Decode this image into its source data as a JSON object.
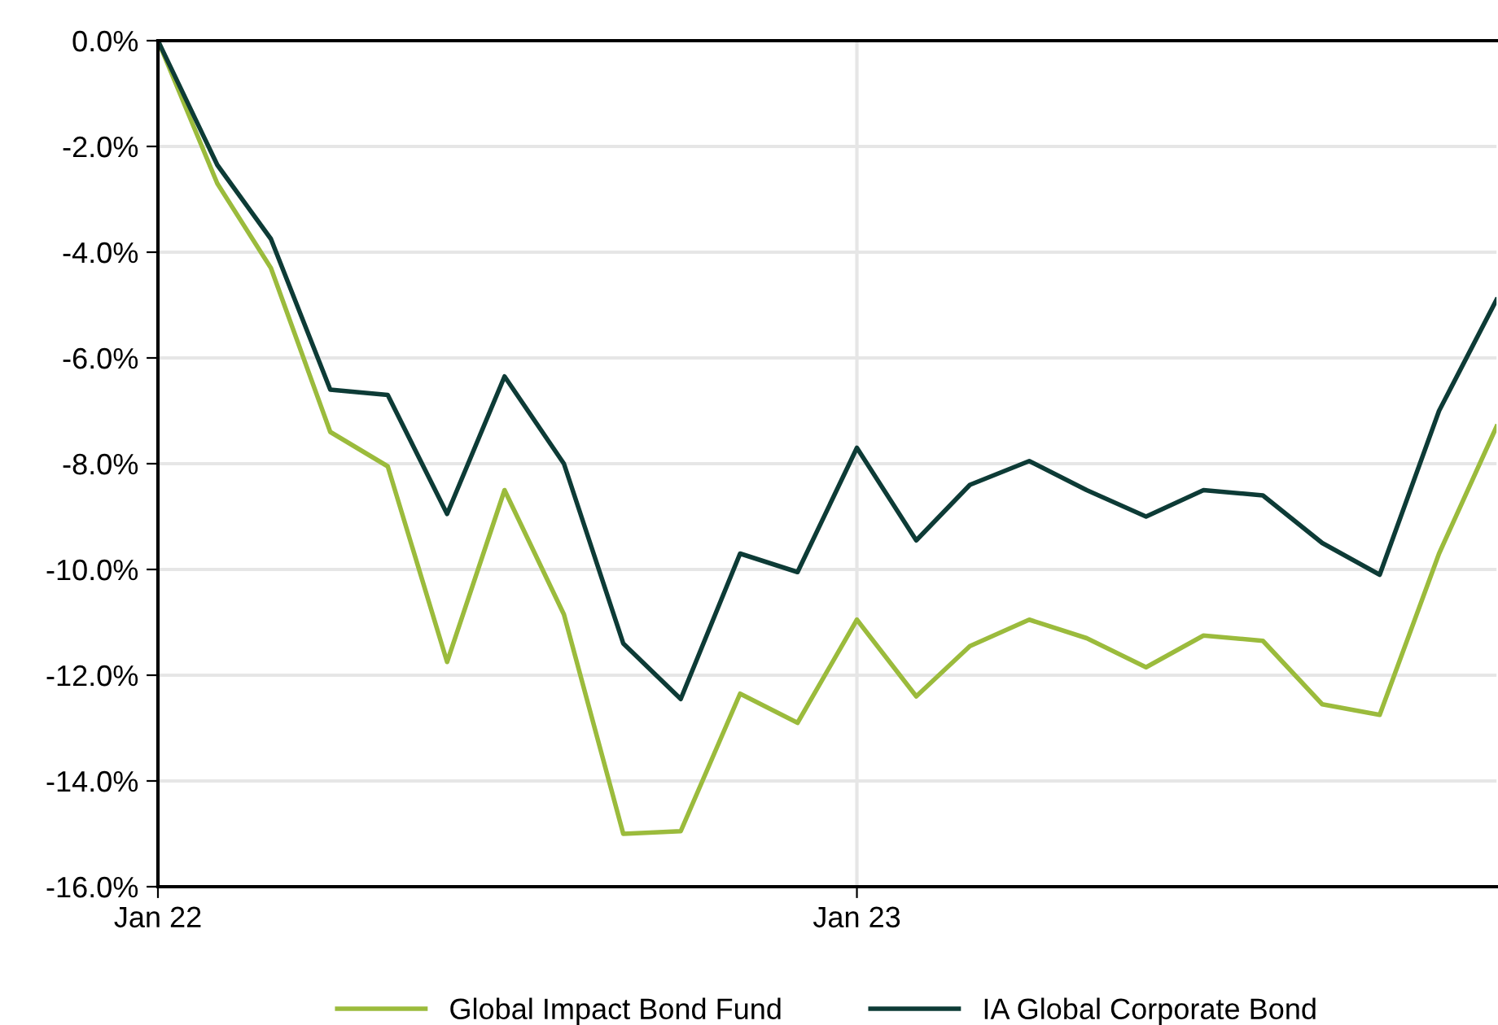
{
  "chart_data": {
    "type": "line",
    "x": [
      "2022-01",
      "2022-02",
      "2022-03",
      "2022-04",
      "2022-05",
      "2022-06",
      "2022-07",
      "2022-08",
      "2022-09",
      "2022-10",
      "2022-11",
      "2022-12",
      "2023-01",
      "2023-02",
      "2023-03",
      "2023-04",
      "2023-05",
      "2023-06",
      "2023-07",
      "2023-08",
      "2023-09",
      "2023-10",
      "2023-11",
      "2023-12"
    ],
    "series": [
      {
        "name": "Global Impact Bond Fund",
        "color": "#9bbb3c",
        "values": [
          0,
          -2.7,
          -4.3,
          -7.4,
          -8.05,
          -11.75,
          -8.5,
          -10.85,
          -15.0,
          -14.95,
          -12.35,
          -12.9,
          -10.95,
          -12.4,
          -11.45,
          -10.95,
          -11.3,
          -11.85,
          -11.25,
          -11.35,
          -12.55,
          -12.75,
          -9.7,
          -7.3
        ]
      },
      {
        "name": "IA Global Corporate Bond",
        "color": "#0d3b36",
        "values": [
          0,
          -2.35,
          -3.75,
          -6.6,
          -6.7,
          -8.95,
          -6.35,
          -8.0,
          -11.4,
          -12.45,
          -9.7,
          -10.05,
          -7.7,
          -9.45,
          -8.4,
          -7.95,
          -8.5,
          -9.0,
          -8.5,
          -8.6,
          -9.5,
          -10.1,
          -7.0,
          -4.9
        ]
      }
    ],
    "xlim": [
      "2022-01",
      "2023-12"
    ],
    "xticks": [
      {
        "value": "2022-01",
        "label": "Jan 22"
      },
      {
        "value": "2023-01",
        "label": "Jan 23"
      }
    ],
    "ylim": [
      -16,
      0
    ],
    "yticks": [
      {
        "value": 0,
        "label": "0.0%"
      },
      {
        "value": -2,
        "label": "-2.0%"
      },
      {
        "value": -4,
        "label": "-4.0%"
      },
      {
        "value": -6,
        "label": "-6.0%"
      },
      {
        "value": -8,
        "label": "-8.0%"
      },
      {
        "value": -10,
        "label": "-10.0%"
      },
      {
        "value": -12,
        "label": "-12.0%"
      },
      {
        "value": -14,
        "label": "-14.0%"
      },
      {
        "value": -16,
        "label": "-16.0%"
      }
    ],
    "grid": true,
    "legend": "bottom",
    "marker": "none",
    "line_style": "solid"
  }
}
